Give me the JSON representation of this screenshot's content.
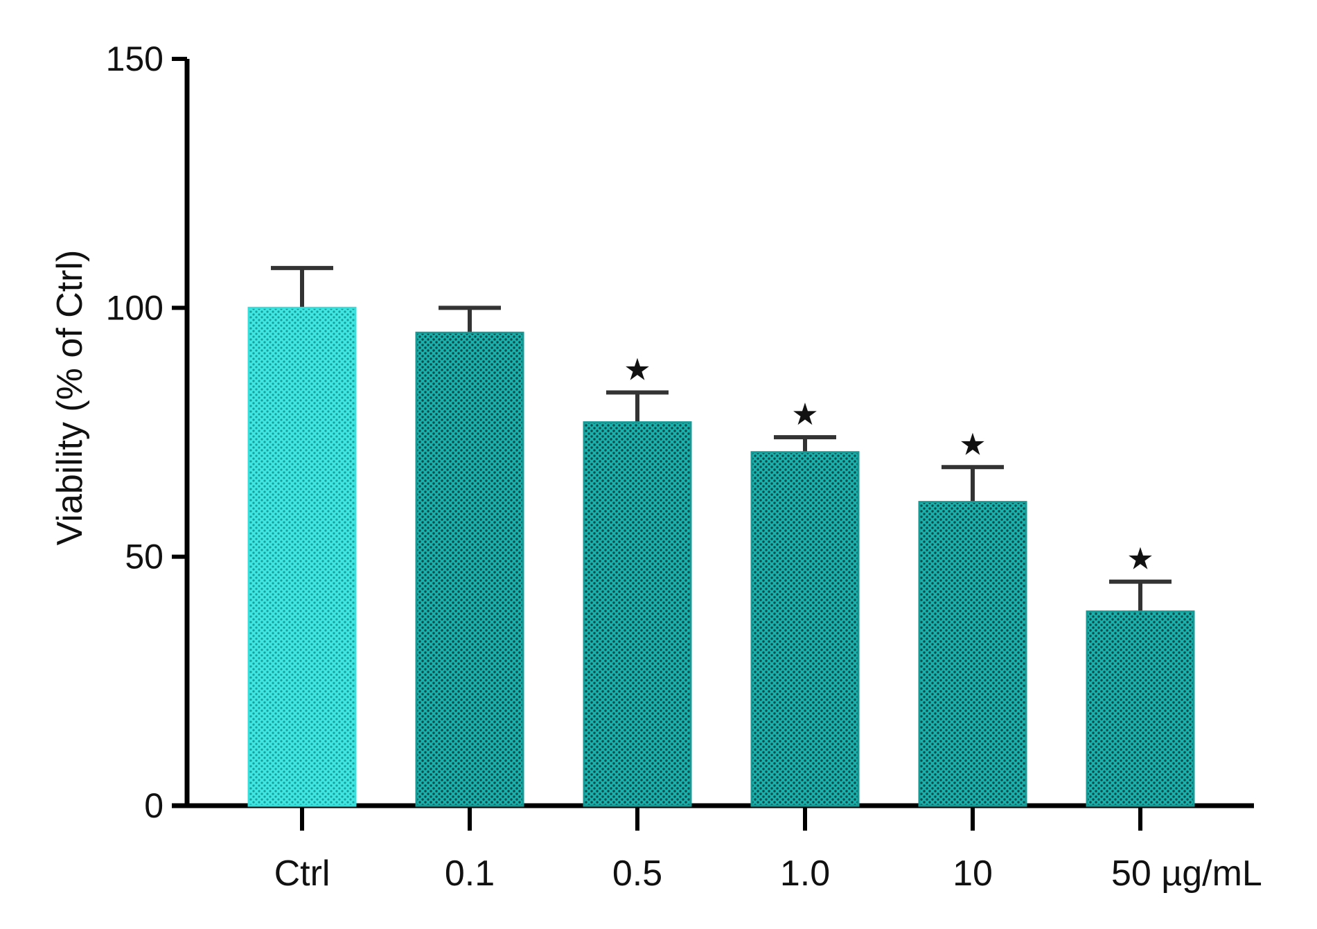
{
  "chart_data": {
    "type": "bar",
    "title": "",
    "xlabel": "",
    "ylabel": "Viability (% of Ctrl)",
    "ylim": [
      0,
      150
    ],
    "yticks": [
      0,
      50,
      100,
      150
    ],
    "categories": [
      "Ctrl",
      "0.1",
      "0.5",
      "1.0",
      "10",
      "50 µg/mL"
    ],
    "series": [
      {
        "values": [
          100,
          95,
          77,
          71,
          61,
          39
        ],
        "error": [
          8,
          5,
          6,
          3,
          7,
          6
        ],
        "colors": [
          "#33e0dc",
          "#169a96",
          "#169a96",
          "#169a96",
          "#169a96",
          "#169a96"
        ],
        "significance": [
          "",
          "",
          "*",
          "*",
          "*",
          "*"
        ]
      }
    ],
    "grid": false,
    "legend": "none"
  }
}
